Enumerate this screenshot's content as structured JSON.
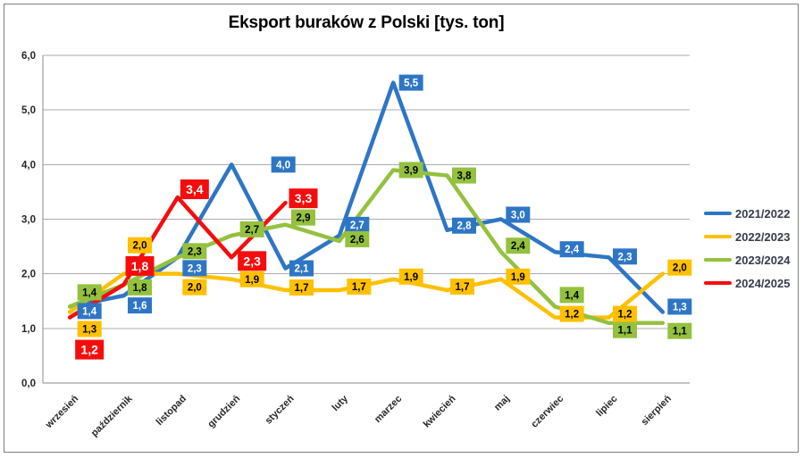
{
  "figure": {
    "background": "#FFFFFF",
    "border_color": "#7F7F7F"
  },
  "chart_data": {
    "type": "line",
    "title": "Eksport buraków z Polski [tys. ton]",
    "xlabel": "",
    "ylabel": "",
    "categories": [
      "wrzesień",
      "październik",
      "listopad",
      "grudzień",
      "styczeń",
      "luty",
      "marzec",
      "kwiecień",
      "maj",
      "czerwiec",
      "lipiec",
      "sierpień"
    ],
    "y_axis": {
      "min": 0,
      "max": 6,
      "step": 1,
      "tick_labels": [
        "0,0",
        "1,0",
        "2,0",
        "3,0",
        "4,0",
        "5,0",
        "6,0"
      ]
    },
    "grid": true,
    "legend_position": "right",
    "decimal_separator": ",",
    "axis_color": "#898989",
    "grid_color": "#ABABAB",
    "tick_text_color": "#262626",
    "legend_text_color": "#353B4B",
    "series": [
      {
        "name": "2021/2022",
        "color": "#2E76C5",
        "label_text_color": "#FFFFFF",
        "emphasis": false,
        "values": [
          1.4,
          1.6,
          2.3,
          4.0,
          2.1,
          2.7,
          5.5,
          2.8,
          3.0,
          2.4,
          2.3,
          1.3
        ],
        "label_offsets": [
          [
            22,
            5
          ],
          [
            18,
            11
          ],
          [
            19,
            12
          ],
          [
            58,
            0
          ],
          [
            18,
            0
          ],
          [
            20,
            -12
          ],
          [
            20,
            0
          ],
          [
            19,
            -5
          ],
          [
            19,
            -5
          ],
          [
            19,
            -3
          ],
          [
            18,
            -1
          ],
          [
            19,
            -6
          ]
        ]
      },
      {
        "name": "2022/2023",
        "color": "#FFC000",
        "label_text_color": "#000000",
        "emphasis": false,
        "values": [
          1.3,
          2.0,
          2.0,
          1.9,
          1.7,
          1.7,
          1.9,
          1.7,
          1.9,
          1.2,
          1.2,
          2.0
        ],
        "label_offsets": [
          [
            22,
            19
          ],
          [
            18,
            -32
          ],
          [
            19,
            15
          ],
          [
            23,
            0
          ],
          [
            18,
            -3
          ],
          [
            22,
            -4
          ],
          [
            20,
            -3
          ],
          [
            17,
            -4
          ],
          [
            19,
            -3
          ],
          [
            19,
            -4
          ],
          [
            18,
            -4
          ],
          [
            19,
            -7
          ]
        ]
      },
      {
        "name": "2023/2024",
        "color": "#94C13E",
        "label_text_color": "#000000",
        "emphasis": false,
        "values": [
          1.4,
          1.8,
          2.3,
          2.7,
          2.9,
          2.6,
          3.9,
          3.8,
          2.4,
          1.4,
          1.1,
          1.1
        ],
        "label_offsets": [
          [
            22,
            -16
          ],
          [
            18,
            3
          ],
          [
            19,
            -7
          ],
          [
            23,
            -7
          ],
          [
            20,
            -8
          ],
          [
            20,
            -2
          ],
          [
            20,
            0
          ],
          [
            19,
            0
          ],
          [
            19,
            -7
          ],
          [
            19,
            -13
          ],
          [
            18,
            8
          ],
          [
            19,
            9
          ]
        ]
      },
      {
        "name": "2024/2025",
        "color": "#F50D0D",
        "label_text_color": "#FFFFFF",
        "emphasis": true,
        "values": [
          1.2,
          1.8,
          3.4,
          2.3,
          3.3
        ],
        "label_offsets": [
          [
            22,
            36
          ],
          [
            18,
            -21
          ],
          [
            19,
            -9
          ],
          [
            23,
            4
          ],
          [
            20,
            -5
          ]
        ]
      }
    ]
  }
}
